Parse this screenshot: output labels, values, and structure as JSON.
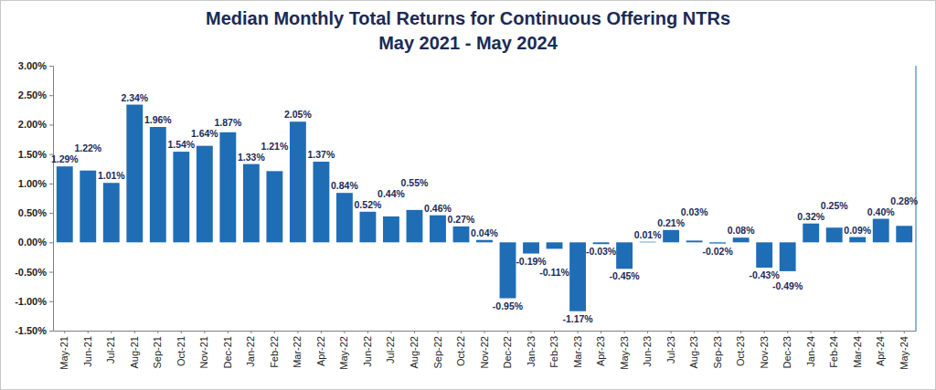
{
  "chart_data": {
    "type": "bar",
    "title": "Median Monthly Total Returns for Continuous Offering NTRs",
    "subtitle": "May 2021 - May 2024",
    "categories": [
      "May-21",
      "Jun-21",
      "Jul-21",
      "Aug-21",
      "Sep-21",
      "Oct-21",
      "Nov-21",
      "Dec-21",
      "Jan-22",
      "Feb-22",
      "Mar-22",
      "Apr-22",
      "May-22",
      "Jun-22",
      "Jul-22",
      "Aug-22",
      "Sep-22",
      "Oct-22",
      "Nov-22",
      "Dec-22",
      "Jan-23",
      "Feb-23",
      "Mar-23",
      "Apr-23",
      "May-23",
      "Jun-23",
      "Jul-23",
      "Aug-23",
      "Sep-23",
      "Oct-23",
      "Nov-23",
      "Dec-23",
      "Jan-24",
      "Feb-24",
      "Mar-24",
      "Apr-24",
      "May-24"
    ],
    "values": [
      1.29,
      1.22,
      1.01,
      2.34,
      1.96,
      1.54,
      1.64,
      1.87,
      1.33,
      1.21,
      2.05,
      1.37,
      0.84,
      0.52,
      0.44,
      0.55,
      0.46,
      0.27,
      0.04,
      -0.95,
      -0.19,
      -0.11,
      -1.17,
      -0.03,
      -0.45,
      0.01,
      0.21,
      0.03,
      -0.02,
      0.08,
      -0.43,
      -0.49,
      0.32,
      0.25,
      0.09,
      0.4,
      0.28
    ],
    "value_labels": [
      "1.29%",
      "1.22%",
      "1.01%",
      "2.34%",
      "1.96%",
      "1.54%",
      "1.64%",
      "1.87%",
      "1.33%",
      "1.21%",
      "2.05%",
      "1.37%",
      "0.84%",
      "0.52%",
      "0.44%",
      "0.55%",
      "0.46%",
      "0.27%",
      "0.04%",
      "-0.95%",
      "-0.19%",
      "-0.11%",
      "-1.17%",
      "-0.03%",
      "-0.45%",
      "0.01%",
      "0.21%",
      "0.03%",
      "-0.02%",
      "0.08%",
      "-0.43%",
      "-0.49%",
      "0.32%",
      "0.25%",
      "0.09%",
      "0.40%",
      "0.28%"
    ],
    "color": "#1f6db5",
    "ylim": [
      -1.5,
      3
    ],
    "yticks": [
      {
        "value": -1.5,
        "label": "-1.50%"
      },
      {
        "value": -1,
        "label": "-1.00%"
      },
      {
        "value": -0.5,
        "label": "-0.50%"
      },
      {
        "value": 0,
        "label": "0.00%"
      },
      {
        "value": 0.5,
        "label": "0.50%"
      },
      {
        "value": 1,
        "label": "1.00%"
      },
      {
        "value": 1.5,
        "label": "1.50%"
      },
      {
        "value": 2,
        "label": "2.00%"
      },
      {
        "value": 2.5,
        "label": "2.50%"
      },
      {
        "value": 3,
        "label": "3.00%"
      }
    ],
    "grid": false,
    "data_labels": true
  }
}
